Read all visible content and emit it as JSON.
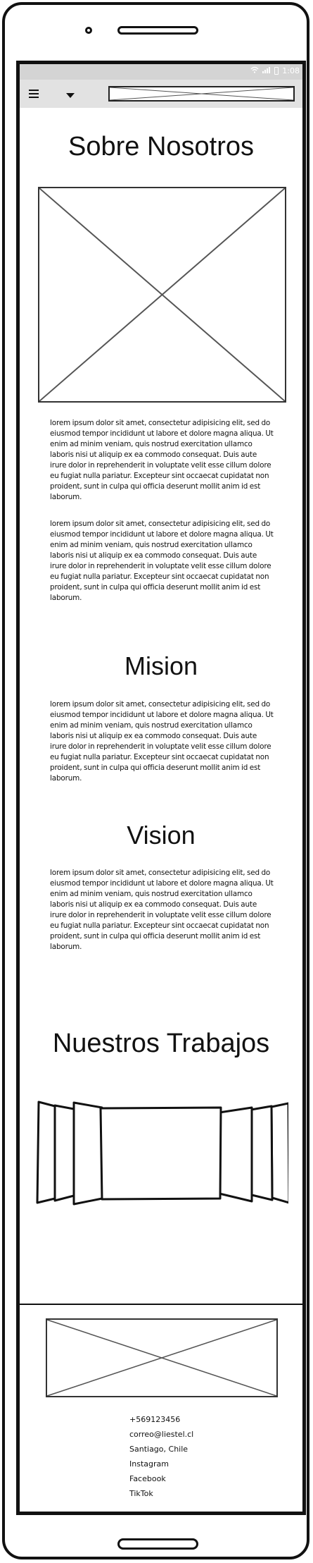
{
  "status_bar": {
    "time": "1:08"
  },
  "about": {
    "title": "Sobre Nosotros",
    "paragraph_1": "lorem ipsum dolor sit amet, consectetur adipisicing elit, sed do eiusmod tempor incididunt ut labore et dolore magna aliqua. Ut enim ad minim veniam, quis nostrud exercitation ullamco laboris nisi ut aliquip ex ea commodo consequat. Duis aute irure dolor in reprehenderit in voluptate velit esse cillum dolore eu fugiat nulla pariatur. Excepteur sint occaecat cupidatat non proident, sunt in culpa qui officia deserunt mollit anim id est laborum.",
    "paragraph_2": "lorem ipsum dolor sit amet, consectetur adipisicing elit, sed do eiusmod tempor incididunt ut labore et dolore magna aliqua. Ut enim ad minim veniam, quis nostrud exercitation ullamco laboris nisi ut aliquip ex ea commodo consequat. Duis aute irure dolor in reprehenderit in voluptate velit esse cillum dolore eu fugiat nulla pariatur. Excepteur sint occaecat cupidatat non proident, sunt in culpa qui officia deserunt mollit anim id est laborum."
  },
  "mission": {
    "title": "Mision",
    "paragraph": "lorem ipsum dolor sit amet, consectetur adipisicing elit, sed do eiusmod tempor incididunt ut labore et dolore magna aliqua. Ut enim ad minim veniam, quis nostrud exercitation ullamco laboris nisi ut aliquip ex ea commodo consequat. Duis aute irure dolor in reprehenderit in voluptate velit esse cillum dolore eu fugiat nulla pariatur. Excepteur sint occaecat cupidatat non proident, sunt in culpa qui officia deserunt mollit anim id est laborum."
  },
  "vision": {
    "title": "Vision",
    "paragraph": "lorem ipsum dolor sit amet, consectetur adipisicing elit, sed do eiusmod tempor incididunt ut labore et dolore magna aliqua. Ut enim ad minim veniam, quis nostrud exercitation ullamco laboris nisi ut aliquip ex ea commodo consequat. Duis aute irure dolor in reprehenderit in voluptate velit esse cillum dolore eu fugiat nulla pariatur. Excepteur sint occaecat cupidatat non proident, sunt in culpa qui officia deserunt mollit anim id est laborum."
  },
  "works": {
    "title": "Nuestros Trabajos"
  },
  "footer": {
    "phone": "+569123456",
    "email": "correo@liestel.cl",
    "location": "Santiago, Chile",
    "instagram": "Instagram",
    "facebook": "Facebook",
    "tiktok": "TikTok"
  },
  "icons": {
    "menu": "menu-icon",
    "dropdown": "dropdown-arrow-icon",
    "wifi": "wifi-icon",
    "signal": "signal-icon",
    "battery": "battery-icon"
  }
}
